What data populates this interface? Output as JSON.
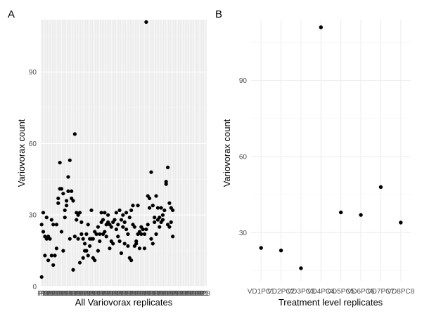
{
  "chart_data": [
    {
      "panel": "A",
      "type": "scatter",
      "xlabel": "All Variovorax replicates",
      "ylabel": "Variovorax count",
      "yticks": [
        0,
        30,
        60,
        90
      ],
      "ylim": [
        0,
        112
      ],
      "x_tick_labels": [
        "P1",
        "P8"
      ],
      "grid": true,
      "background": "#ebebeb",
      "point_color": "#000000",
      "n_categories": 100,
      "points": [
        [
          1,
          4
        ],
        [
          1,
          26
        ],
        [
          2,
          23
        ],
        [
          2,
          31
        ],
        [
          3,
          13
        ],
        [
          3,
          21
        ],
        [
          4,
          29
        ],
        [
          4,
          20
        ],
        [
          5,
          21
        ],
        [
          5,
          11
        ],
        [
          6,
          20
        ],
        [
          7,
          28
        ],
        [
          7,
          13
        ],
        [
          8,
          26
        ],
        [
          8,
          9
        ],
        [
          9,
          13
        ],
        [
          10,
          26
        ],
        [
          10,
          16
        ],
        [
          11,
          37
        ],
        [
          11,
          35
        ],
        [
          12,
          52
        ],
        [
          12,
          41
        ],
        [
          13,
          41
        ],
        [
          13,
          23
        ],
        [
          14,
          15
        ],
        [
          14,
          39
        ],
        [
          15,
          32
        ],
        [
          15,
          29
        ],
        [
          16,
          34
        ],
        [
          16,
          36
        ],
        [
          17,
          46
        ],
        [
          17,
          40
        ],
        [
          18,
          53
        ],
        [
          18,
          20
        ],
        [
          19,
          40
        ],
        [
          19,
          37
        ],
        [
          20,
          36
        ],
        [
          20,
          7
        ],
        [
          21,
          64
        ],
        [
          21,
          21
        ],
        [
          22,
          31
        ],
        [
          22,
          28
        ],
        [
          23,
          30
        ],
        [
          23,
          20
        ],
        [
          24,
          31
        ],
        [
          24,
          10
        ],
        [
          25,
          22
        ],
        [
          25,
          27
        ],
        [
          26,
          20
        ],
        [
          26,
          12
        ],
        [
          27,
          18
        ],
        [
          27,
          15
        ],
        [
          28,
          22
        ],
        [
          28,
          15
        ],
        [
          29,
          26
        ],
        [
          29,
          13
        ],
        [
          30,
          20
        ],
        [
          30,
          17
        ],
        [
          31,
          32
        ],
        [
          31,
          20
        ],
        [
          32,
          20
        ],
        [
          32,
          12
        ],
        [
          33,
          23
        ],
        [
          33,
          11
        ],
        [
          34,
          22
        ],
        [
          35,
          25
        ],
        [
          35,
          15
        ],
        [
          36,
          22
        ],
        [
          36,
          19
        ],
        [
          37,
          27
        ],
        [
          37,
          31
        ],
        [
          38,
          28
        ],
        [
          38,
          22
        ],
        [
          39,
          31
        ],
        [
          39,
          23
        ],
        [
          40,
          26
        ],
        [
          40,
          21
        ],
        [
          41,
          27
        ],
        [
          41,
          30
        ],
        [
          42,
          26
        ],
        [
          42,
          16
        ],
        [
          43,
          25
        ],
        [
          43,
          19
        ],
        [
          44,
          27
        ],
        [
          44,
          18
        ],
        [
          45,
          28
        ],
        [
          46,
          31
        ],
        [
          46,
          24
        ],
        [
          47,
          26
        ],
        [
          47,
          21
        ],
        [
          48,
          32
        ],
        [
          48,
          19
        ],
        [
          49,
          28
        ],
        [
          49,
          14
        ],
        [
          50,
          30
        ],
        [
          50,
          25
        ],
        [
          51,
          27
        ],
        [
          51,
          18
        ],
        [
          52,
          31
        ],
        [
          52,
          24
        ],
        [
          53,
          17
        ],
        [
          53,
          22
        ],
        [
          54,
          29
        ],
        [
          54,
          12
        ],
        [
          55,
          32
        ],
        [
          55,
          11
        ],
        [
          56,
          34
        ],
        [
          56,
          26
        ],
        [
          57,
          25
        ],
        [
          57,
          17
        ],
        [
          58,
          19
        ],
        [
          58,
          18
        ],
        [
          59,
          22
        ],
        [
          59,
          34
        ],
        [
          60,
          23
        ],
        [
          60,
          16
        ],
        [
          61,
          25
        ],
        [
          61,
          22
        ],
        [
          62,
          24
        ],
        [
          62,
          24
        ],
        [
          63,
          22
        ],
        [
          63,
          16
        ],
        [
          64,
          24
        ],
        [
          64,
          111
        ],
        [
          65,
          38
        ],
        [
          65,
          26
        ],
        [
          66,
          37
        ],
        [
          66,
          33
        ],
        [
          67,
          20
        ],
        [
          67,
          48
        ],
        [
          68,
          18
        ],
        [
          68,
          34
        ],
        [
          69,
          29
        ],
        [
          69,
          27
        ],
        [
          70,
          38
        ],
        [
          70,
          22
        ],
        [
          71,
          28
        ],
        [
          71,
          33
        ],
        [
          72,
          29
        ],
        [
          72,
          25
        ],
        [
          73,
          33
        ],
        [
          73,
          27
        ],
        [
          74,
          28
        ],
        [
          74,
          30
        ],
        [
          75,
          32
        ],
        [
          76,
          43
        ],
        [
          76,
          44
        ],
        [
          77,
          50
        ],
        [
          77,
          26
        ],
        [
          78,
          25
        ],
        [
          78,
          35
        ],
        [
          79,
          33
        ],
        [
          79,
          27
        ],
        [
          80,
          32
        ],
        [
          80,
          21
        ]
      ]
    },
    {
      "panel": "B",
      "type": "scatter",
      "xlabel": "Treatment level replicates",
      "ylabel": "Variovorax count",
      "yticks": [
        30,
        60,
        90
      ],
      "ylim": [
        11,
        114
      ],
      "categories": [
        "VD1PC1",
        "VD2PC2",
        "VD3PC3",
        "VD4PC4",
        "VD5PC5",
        "VD6PC6",
        "VD7PC7",
        "VD8PC8"
      ],
      "values": [
        24,
        23,
        16,
        111,
        38,
        37,
        48,
        34
      ],
      "grid": true,
      "background": "#ffffff",
      "point_color": "#000000"
    }
  ]
}
